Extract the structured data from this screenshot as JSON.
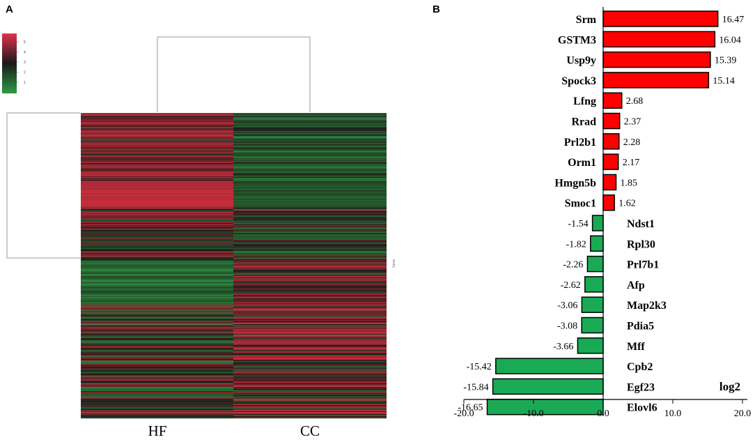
{
  "panels": {
    "a_label": "A",
    "b_label": "B"
  },
  "colors": {
    "up": "#ff0000",
    "down": "#1aaa55",
    "heat_high": "#d6303f",
    "heat_mid": "#1a1a1a",
    "heat_low": "#2e8b3d"
  },
  "chart_data": [
    {
      "type": "heatmap",
      "panel": "A",
      "columns": [
        "HF",
        "CC"
      ],
      "row_axis_label": "Gene",
      "color_scale": {
        "ticks": [
          1,
          2,
          3,
          4,
          5
        ],
        "low_color": "#2e8b3d",
        "mid_color": "#1a1a1a",
        "high_color": "#d6303f"
      },
      "dendrogram": {
        "columns": "clustered",
        "rows": "clustered"
      }
    },
    {
      "type": "bar",
      "orientation": "horizontal",
      "panel": "B",
      "categories": [
        "Srm",
        "GSTM3",
        "Usp9y",
        "Spock3",
        "Lfng",
        "Rrad",
        "Prl2b1",
        "Orm1",
        "Hmgn5b",
        "Smoc1",
        "Ndst1",
        "Rpl30",
        "Prl7b1",
        "Afp",
        "Map2k3",
        "Pdia5",
        "Mff",
        "Cpb2",
        "Egf23",
        "Elovl6"
      ],
      "values": [
        16.47,
        16.04,
        15.39,
        15.14,
        2.68,
        2.37,
        2.28,
        2.17,
        1.85,
        1.62,
        -1.54,
        -1.82,
        -2.26,
        -2.62,
        -3.06,
        -3.08,
        -3.66,
        -15.42,
        -15.84,
        -16.65
      ],
      "value_labels": [
        "16.47",
        "16.04",
        "15.39",
        "15.14",
        "2.68",
        "2.37",
        "2.28",
        "2.17",
        "1.85",
        "1.62",
        "-1.54",
        "-1.82",
        "-2.26",
        "-2.62",
        "-3.06",
        "-3.08",
        "-3.66",
        "-15.42",
        "-15.84",
        "-16.65"
      ],
      "xlabel": "log2",
      "xlim": [
        -20,
        20
      ],
      "xticks": [
        -20,
        -10,
        0,
        10,
        20
      ],
      "xtick_labels": [
        "-20.0",
        "-10.0",
        "0.0",
        "10.0",
        "20.0"
      ]
    }
  ]
}
